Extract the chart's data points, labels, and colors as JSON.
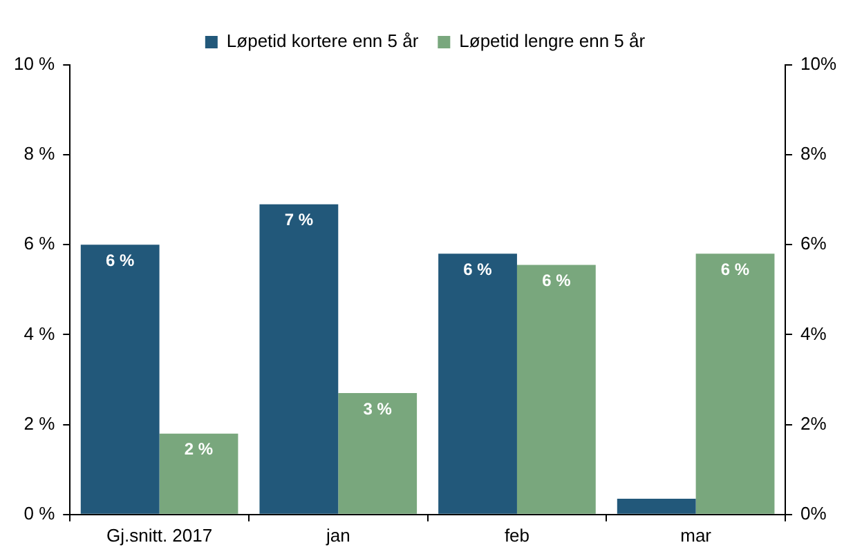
{
  "chart_data": {
    "type": "bar",
    "categories": [
      "Gj.snitt. 2017",
      "jan",
      "feb",
      "mar"
    ],
    "series": [
      {
        "name": "Løpetid kortere enn 5 år",
        "color": "#22587a",
        "values": [
          6.0,
          6.9,
          5.8,
          0.35
        ],
        "value_labels": [
          "6 %",
          "7 %",
          "6 %",
          null
        ]
      },
      {
        "name": "Løpetid lengre enn 5 år",
        "color": "#79a77d",
        "values": [
          1.8,
          2.7,
          5.55,
          5.8
        ],
        "value_labels": [
          "2 %",
          "3 %",
          "6 %",
          "6 %"
        ]
      }
    ],
    "ylim": [
      0,
      10
    ],
    "yticks": [
      {
        "value": 0,
        "label": "0 %"
      },
      {
        "value": 2,
        "label": "2 %"
      },
      {
        "value": 4,
        "label": "4 %"
      },
      {
        "value": 6,
        "label": "6 %"
      },
      {
        "value": 8,
        "label": "8 %"
      },
      {
        "value": 10,
        "label": "10 %"
      }
    ],
    "y2lim": [
      0,
      10
    ],
    "y2ticks": [
      {
        "value": 0,
        "label": "0%"
      },
      {
        "value": 2,
        "label": "2%"
      },
      {
        "value": 4,
        "label": "4%"
      },
      {
        "value": 6,
        "label": "6%"
      },
      {
        "value": 8,
        "label": "8%"
      },
      {
        "value": 10,
        "label": "10%"
      }
    ],
    "grid": false,
    "legend": "top"
  }
}
